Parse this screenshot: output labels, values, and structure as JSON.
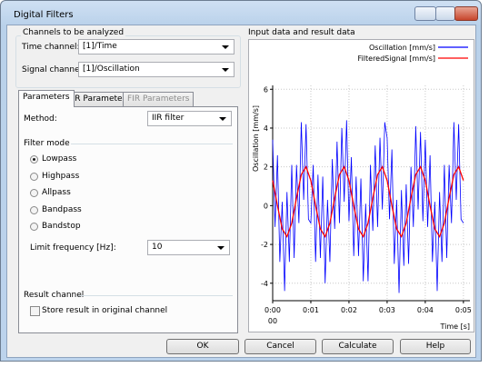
{
  "window": {
    "title": "Digital Filters"
  },
  "channels": {
    "title": "Channels to be analyzed",
    "time_label": "Time channel:",
    "time_value": "[1]/Time",
    "signal_label": "Signal channel:",
    "signal_value": "[1]/Oscillation"
  },
  "tabs": [
    "Parameters",
    "IIR Parameters",
    "FIR Parameters"
  ],
  "parameters": {
    "method_label": "Method:",
    "method_value": "IIR filter",
    "filter_mode_title": "Filter mode",
    "filter_modes": [
      {
        "label": "Lowpass",
        "checked": true
      },
      {
        "label": "Highpass",
        "checked": false
      },
      {
        "label": "Allpass",
        "checked": false
      },
      {
        "label": "Bandpass",
        "checked": false
      },
      {
        "label": "Bandstop",
        "checked": false
      }
    ],
    "limit_label": "Limit frequency [Hz]:",
    "limit_value": 10,
    "result_title": "Result channel",
    "store_label": "Store result in original channel",
    "store_checked": false
  },
  "chart_title": "Input data and result data",
  "chart_data": {
    "type": "line",
    "xlabel": "Time [s]",
    "ylabel": "Oscillation [mm/s]",
    "x_sublabel": "00",
    "xlim": [
      0,
      0.0517
    ],
    "ylim": [
      -4.9,
      6.2
    ],
    "xticks": [
      {
        "value": 0,
        "label": "0:00"
      },
      {
        "value": 0.01,
        "label": "0:01"
      },
      {
        "value": 0.02,
        "label": "0:02"
      },
      {
        "value": 0.03,
        "label": "0:03"
      },
      {
        "value": 0.04,
        "label": "0:04"
      },
      {
        "value": 0.05,
        "label": "0:05"
      }
    ],
    "yticks": [
      -4,
      -2,
      0,
      2,
      4,
      6
    ],
    "grid": true,
    "legend": "upper right",
    "series": [
      {
        "name": "Oscillation [mm/s]",
        "color": "#0000ff",
        "x": [
          0,
          0.000625,
          0.00125,
          0.001875,
          0.0025,
          0.003125,
          0.00375,
          0.004375,
          0.005,
          0.005625,
          0.00625,
          0.006875,
          0.0075,
          0.008125,
          0.00875,
          0.009375,
          0.01,
          0.010625,
          0.01125,
          0.011875,
          0.0125,
          0.013125,
          0.01375,
          0.014375,
          0.015,
          0.015625,
          0.01625,
          0.016875,
          0.0175,
          0.018125,
          0.01875,
          0.019375,
          0.02,
          0.020625,
          0.02125,
          0.021875,
          0.0225,
          0.023125,
          0.02375,
          0.024375,
          0.025,
          0.025625,
          0.02625,
          0.026875,
          0.0275,
          0.028125,
          0.02875,
          0.029375,
          0.03,
          0.030625,
          0.03125,
          0.031875,
          0.0325,
          0.033125,
          0.03375,
          0.034375,
          0.035,
          0.035625,
          0.03625,
          0.036875,
          0.0375,
          0.038125,
          0.03875,
          0.039375,
          0.04,
          0.040625,
          0.04125,
          0.041875,
          0.0425,
          0.043125,
          0.04375,
          0.044375,
          0.045,
          0.045625,
          0.04625,
          0.046875,
          0.0475,
          0.048125,
          0.04875,
          0.049375,
          0.05
        ],
        "values": [
          3.4,
          -1.1,
          2.6,
          -2.9,
          0.2,
          -4.4,
          0.7,
          -2.9,
          2.1,
          -2.7,
          2.1,
          -0.9,
          4.3,
          0.3,
          4.2,
          -0.7,
          -0.9,
          2.1,
          -2.9,
          1.6,
          -2.7,
          1.5,
          -4.0,
          0.3,
          -2.9,
          2.4,
          -1.2,
          3.3,
          -0.9,
          4.0,
          0.2,
          4.4,
          -0.8,
          2.5,
          -2.6,
          1.5,
          -2.6,
          1.4,
          -3.9,
          0.1,
          -3.9,
          2.1,
          -1.3,
          3.1,
          -1.1,
          3.5,
          -0.2,
          4.3,
          3.5,
          -0.7,
          2.9,
          -3.0,
          0.3,
          -4.5,
          0.8,
          -3.1,
          1.1,
          -3.0,
          2.0,
          -1.1,
          4.1,
          -0.2,
          3.8,
          -0.8,
          3.4,
          -1.1,
          2.6,
          -2.9,
          0.2,
          -4.4,
          0.7,
          -2.9,
          2.1,
          -2.7,
          2.1,
          -0.9,
          4.3,
          0.3,
          4.2,
          -0.7,
          -0.9
        ]
      },
      {
        "name": "FilteredSignal [mm/s]",
        "color": "#ff0000",
        "x": [
          0,
          0.00125,
          0.0025,
          0.00375,
          0.005,
          0.00625,
          0.0075,
          0.00875,
          0.01,
          0.01125,
          0.0125,
          0.01375,
          0.015,
          0.01625,
          0.0175,
          0.01875,
          0.02,
          0.02125,
          0.0225,
          0.02375,
          0.025,
          0.02625,
          0.0275,
          0.02875,
          0.03,
          0.03125,
          0.0325,
          0.03375,
          0.035,
          0.03625,
          0.0375,
          0.03875,
          0.04,
          0.04125,
          0.0425,
          0.04375,
          0.045,
          0.04625,
          0.0475,
          0.04875,
          0.05
        ],
        "values": [
          1.3,
          0.0,
          -1.2,
          -1.6,
          -0.9,
          0.4,
          1.6,
          2.0,
          1.3,
          0.0,
          -1.2,
          -1.6,
          -0.9,
          0.4,
          1.6,
          2.0,
          1.3,
          0.0,
          -1.2,
          -1.6,
          -0.9,
          0.4,
          1.6,
          2.0,
          1.3,
          0.0,
          -1.2,
          -1.6,
          -0.9,
          0.4,
          1.6,
          2.0,
          1.3,
          0.0,
          -1.2,
          -1.6,
          -0.9,
          0.4,
          1.6,
          2.0,
          1.3
        ]
      }
    ]
  },
  "buttons": [
    "OK",
    "Cancel",
    "Calculate",
    "Help"
  ]
}
